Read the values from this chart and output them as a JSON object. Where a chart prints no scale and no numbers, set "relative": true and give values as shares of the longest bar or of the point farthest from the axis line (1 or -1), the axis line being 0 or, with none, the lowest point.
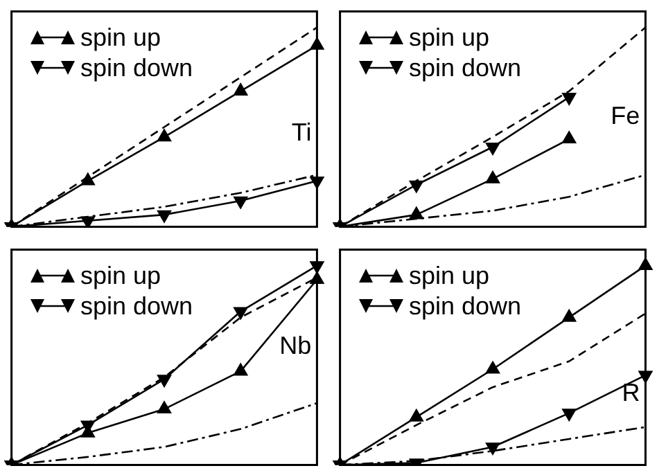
{
  "chart_data": [
    {
      "type": "line",
      "relative": true,
      "categories": [
        null,
        null,
        null,
        null,
        null
      ],
      "legend": "top left",
      "annotations": [
        "Ti"
      ],
      "series": [
        {
          "name": "spin up",
          "color": "#000000",
          "marker": "triangle",
          "line_style": "solid",
          "values": [
            0,
            0.23,
            0.45,
            0.68,
            0.91
          ]
        },
        {
          "name": "spin down",
          "color": "#000000",
          "marker": "triangle_down",
          "line_style": "solid",
          "values": [
            0,
            0.03,
            0.06,
            0.13,
            0.23
          ]
        },
        {
          "color": "#000000",
          "marker": "none",
          "line_style": "dashed",
          "values": [
            0,
            0.25,
            0.5,
            0.75,
            1
          ]
        },
        {
          "color": "#000000",
          "marker": "none",
          "line_style": "dashdot",
          "values": [
            0,
            0.05,
            0.1,
            0.17,
            0.26
          ]
        }
      ]
    },
    {
      "type": "line",
      "relative": true,
      "categories": [
        null,
        null,
        null,
        null,
        null
      ],
      "legend": "top left",
      "annotations": [
        "Fe"
      ],
      "series": [
        {
          "name": "spin up",
          "color": "#000000",
          "marker": "triangle",
          "line_style": "solid",
          "values": [
            0,
            0.06,
            0.24,
            0.44,
            null
          ]
        },
        {
          "name": "spin down",
          "color": "#000000",
          "marker": "triangle_down",
          "line_style": "solid",
          "values": [
            0,
            0.21,
            0.4,
            0.65,
            null
          ]
        },
        {
          "color": "#000000",
          "marker": "none",
          "line_style": "dashed",
          "values": [
            0,
            0.23,
            0.45,
            0.68,
            1
          ]
        },
        {
          "color": "#000000",
          "marker": "none",
          "line_style": "dashdot",
          "values": [
            0,
            0.04,
            0.08,
            0.15,
            0.26
          ]
        }
      ]
    },
    {
      "type": "line",
      "relative": true,
      "categories": [
        null,
        null,
        null,
        null,
        null
      ],
      "legend": "top left",
      "annotations": [
        "Nb"
      ],
      "series": [
        {
          "name": "spin up",
          "color": "#000000",
          "marker": "triangle",
          "line_style": "solid",
          "values": [
            0,
            0.16,
            0.28,
            0.47,
            0.93
          ]
        },
        {
          "name": "spin down",
          "color": "#000000",
          "marker": "triangle_down",
          "line_style": "solid",
          "values": [
            0,
            0.2,
            0.43,
            0.77,
            1
          ]
        },
        {
          "color": "#000000",
          "marker": "none",
          "line_style": "dashed",
          "values": [
            0,
            0.21,
            0.44,
            0.74,
            0.94
          ]
        },
        {
          "color": "#000000",
          "marker": "none",
          "line_style": "dashdot",
          "values": [
            0,
            0.04,
            0.09,
            0.18,
            0.31
          ]
        }
      ]
    },
    {
      "type": "line",
      "relative": true,
      "categories": [
        null,
        null,
        null,
        null,
        null
      ],
      "legend": "top left",
      "annotations": [
        "R"
      ],
      "series": [
        {
          "name": "spin up",
          "color": "#000000",
          "marker": "triangle",
          "line_style": "solid",
          "values": [
            0,
            0.24,
            0.48,
            0.74,
            1
          ]
        },
        {
          "name": "spin down",
          "color": "#000000",
          "marker": "triangle_down",
          "line_style": "solid",
          "values": [
            0,
            0.01,
            0.09,
            0.26,
            0.45
          ]
        },
        {
          "color": "#000000",
          "marker": "none",
          "line_style": "dashed",
          "values": [
            0,
            0.2,
            0.39,
            0.52,
            0.76
          ]
        },
        {
          "color": "#000000",
          "marker": "none",
          "line_style": "dashdot",
          "values": [
            0,
            0.02,
            0.07,
            0.13,
            0.19
          ]
        }
      ]
    }
  ]
}
